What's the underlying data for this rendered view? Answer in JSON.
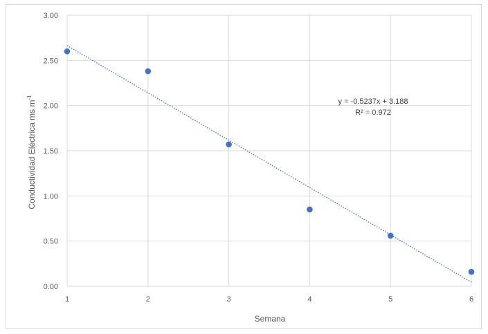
{
  "chart_data": {
    "type": "scatter",
    "title": "",
    "xlabel": "Semana",
    "ylabel": "Conductividad Eléctrica ms m",
    "ylabel_superscript": "-1",
    "xlim": [
      1,
      6
    ],
    "ylim": [
      0,
      3
    ],
    "x_ticks": [
      "1",
      "2",
      "3",
      "4",
      "5",
      "6"
    ],
    "y_ticks": [
      "0.00",
      "0.50",
      "1.00",
      "1.50",
      "2.00",
      "2.50",
      "3.00"
    ],
    "grid": true,
    "series": [
      {
        "x": [
          1,
          2,
          3,
          4,
          5,
          6
        ],
        "y": [
          2.6,
          2.38,
          1.57,
          0.85,
          0.56,
          0.16
        ]
      }
    ],
    "trendline": {
      "type": "linear",
      "slope": -0.5237,
      "intercept": 3.188,
      "equation": "y = -0.5237x + 3.188",
      "r_squared": "R² = 0.972"
    },
    "colors": {
      "points": "#4472c4",
      "trendline": "#4472c4",
      "grid": "#d9d9d9"
    }
  }
}
